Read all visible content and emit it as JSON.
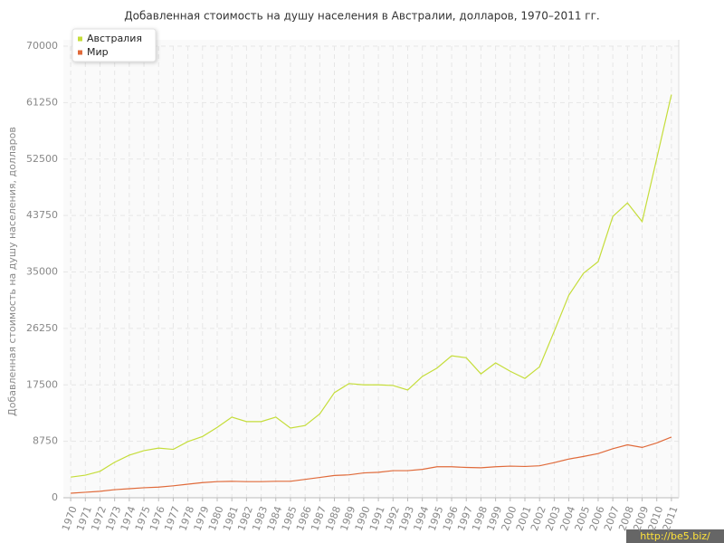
{
  "chart_data": {
    "type": "line",
    "title": "Добавленная стоимость на душу населения в Австралии, долларов, 1970–2011 гг.",
    "y_label": "Добавленная стоимость на душу населения, долларов",
    "categories": [
      "1970",
      "1971",
      "1972",
      "1973",
      "1974",
      "1975",
      "1976",
      "1977",
      "1978",
      "1979",
      "1980",
      "1981",
      "1982",
      "1983",
      "1984",
      "1985",
      "1986",
      "1987",
      "1988",
      "1989",
      "1990",
      "1991",
      "1992",
      "1993",
      "1994",
      "1995",
      "1996",
      "1997",
      "1998",
      "1999",
      "2000",
      "2001",
      "2002",
      "2003",
      "2004",
      "2005",
      "2006",
      "2007",
      "2008",
      "2009",
      "2010",
      "2011"
    ],
    "series": [
      {
        "name": "Австралия",
        "color": "#c5dd3a",
        "values": [
          3200,
          3500,
          4100,
          5500,
          6600,
          7300,
          7700,
          7500,
          8700,
          9500,
          10900,
          12500,
          11800,
          11800,
          12500,
          10800,
          11200,
          13000,
          16300,
          17700,
          17500,
          17500,
          17400,
          16700,
          18800,
          20100,
          22000,
          21700,
          19200,
          20900,
          19600,
          18500,
          20300,
          25800,
          31400,
          34800,
          36600,
          43600,
          45700,
          42800,
          52600,
          62500
        ]
      },
      {
        "name": "Мир",
        "color": "#e06a3a",
        "values": [
          700,
          850,
          1000,
          1250,
          1400,
          1550,
          1650,
          1850,
          2100,
          2350,
          2500,
          2550,
          2500,
          2500,
          2550,
          2550,
          2850,
          3150,
          3450,
          3550,
          3850,
          3950,
          4200,
          4200,
          4400,
          4800,
          4800,
          4700,
          4650,
          4800,
          4900,
          4850,
          4950,
          5450,
          6000,
          6400,
          6850,
          7600,
          8200,
          7800,
          8500,
          9400
        ]
      }
    ],
    "ylim": [
      0,
      70000
    ],
    "yticks": [
      0,
      8750,
      17500,
      26250,
      35000,
      43750,
      52500,
      61250,
      70000
    ],
    "grid": true,
    "legend": "top-left",
    "watermark": "http://be5.biz/"
  }
}
